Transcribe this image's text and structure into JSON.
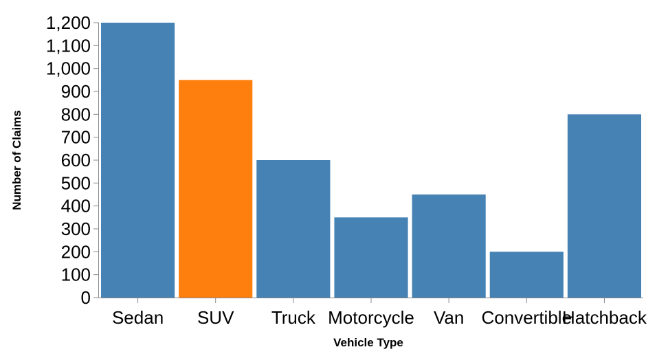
{
  "chart_data": {
    "type": "bar",
    "xlabel": "Vehicle Type",
    "ylabel": "Number of Claims",
    "ylim": [
      0,
      1200
    ],
    "yticks": [
      0,
      100,
      200,
      300,
      400,
      500,
      600,
      700,
      800,
      900,
      1000,
      1100,
      1200
    ],
    "ytick_labels": [
      "0",
      "100",
      "200",
      "300",
      "400",
      "500",
      "600",
      "700",
      "800",
      "900",
      "1,000",
      "1,100",
      "1,200"
    ],
    "categories": [
      "Sedan",
      "SUV",
      "Truck",
      "Motorcycle",
      "Van",
      "Convertible",
      "Hatchback"
    ],
    "values": [
      1200,
      950,
      600,
      350,
      450,
      200,
      800
    ],
    "colors": [
      "#4682b4",
      "#ff7f0e",
      "#4682b4",
      "#4682b4",
      "#4682b4",
      "#4682b4",
      "#4682b4"
    ],
    "grid": false,
    "legend": "none"
  }
}
